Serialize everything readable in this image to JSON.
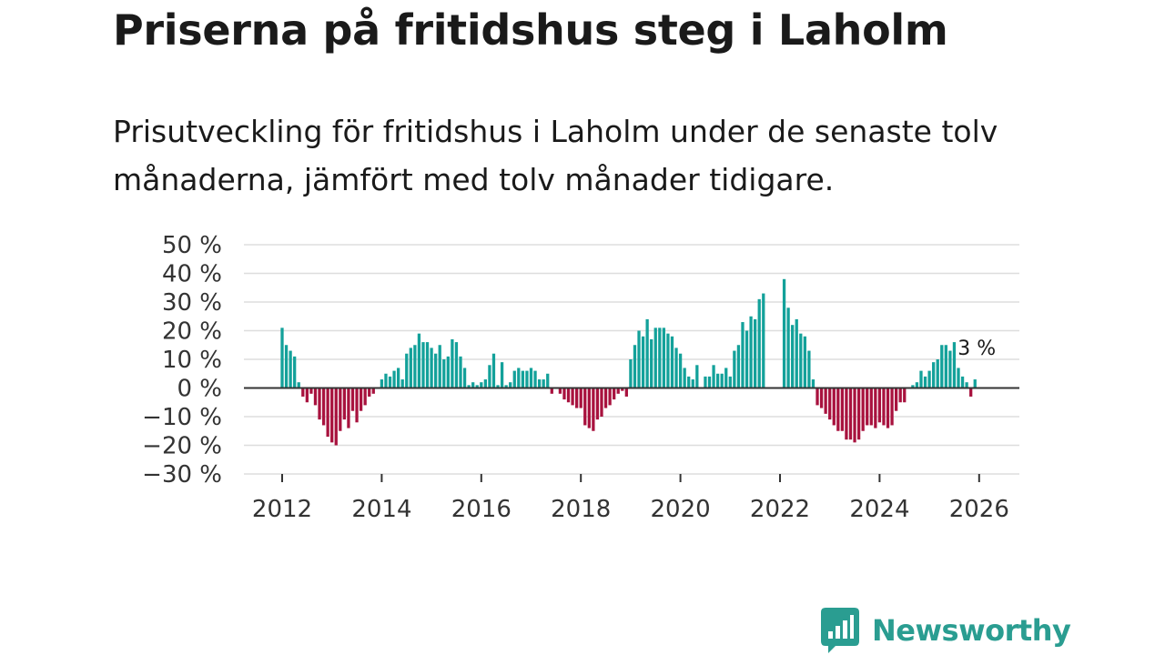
{
  "title": "Priserna på fritidshus steg i Laholm",
  "subtitle": "Prisutveckling för fritidshus i Laholm under de senaste tolv månaderna, jämfört med tolv månader tidigare.",
  "brand": {
    "name": "Newsworthy",
    "icon": "newsworthy-chart-bubble-icon",
    "color": "#2a9d91"
  },
  "colors": {
    "positive": "#13a19a",
    "negative": "#a8123e",
    "grid": "#dddddd",
    "zero": "#333333"
  },
  "chart_data": {
    "type": "bar",
    "title": "Priserna på fritidshus steg i Laholm",
    "xlabel": "",
    "ylabel": "",
    "ylim": [
      -30,
      50
    ],
    "y_ticks": [
      50,
      40,
      30,
      20,
      10,
      0,
      -10,
      -20,
      -30
    ],
    "y_tick_labels": [
      "50 %",
      "40 %",
      "30 %",
      "20 %",
      "10 %",
      "0 %",
      "−10 %",
      "−20 %",
      "−30 %"
    ],
    "x_ticks": [
      2012,
      2014,
      2016,
      2018,
      2020,
      2022,
      2024,
      2026
    ],
    "x_tick_labels": [
      "2012",
      "2014",
      "2016",
      "2018",
      "2020",
      "2022",
      "2024",
      "2026"
    ],
    "series": [
      {
        "name": "Prisutveckling",
        "start_year": 2012,
        "start_month": 1,
        "interval": "month",
        "values": [
          21,
          15,
          13,
          11,
          2,
          -3,
          -5,
          -2,
          -6,
          -11,
          -13,
          -17,
          -19,
          -20,
          -15,
          -11,
          -14,
          -8,
          -12,
          -8,
          -6,
          -3,
          -2,
          0,
          3,
          5,
          4,
          6,
          7,
          3,
          12,
          14,
          15,
          19,
          16,
          16,
          14,
          12,
          15,
          10,
          11,
          17,
          16,
          11,
          7,
          1,
          2,
          1,
          2,
          3,
          8,
          12,
          1,
          9,
          1,
          2,
          6,
          7,
          6,
          6,
          7,
          6,
          3,
          3,
          5,
          -2,
          0,
          -2,
          -4,
          -5,
          -6,
          -7,
          -7,
          -13,
          -14,
          -15,
          -11,
          -10,
          -7,
          -6,
          -4,
          -2,
          -1,
          -3,
          10,
          15,
          20,
          18,
          24,
          17,
          21,
          21,
          21,
          19,
          18,
          14,
          12,
          7,
          4,
          3,
          8,
          null,
          4,
          4,
          8,
          5,
          5,
          7,
          4,
          13,
          15,
          23,
          20,
          25,
          24,
          31,
          33,
          null,
          null,
          null,
          null,
          38,
          28,
          22,
          24,
          19,
          18,
          13,
          3,
          -6,
          -7,
          -9,
          -11,
          -13,
          -15,
          -15,
          -18,
          -18,
          -19,
          -18,
          -15,
          -13,
          -13,
          -14,
          -12,
          -13,
          -14,
          -13,
          -8,
          -5,
          -5,
          0,
          1,
          2,
          6,
          4,
          6,
          9,
          10,
          15,
          15,
          13,
          16,
          7,
          4,
          2,
          -3,
          3
        ]
      }
    ],
    "last_value_label": "3 %"
  }
}
